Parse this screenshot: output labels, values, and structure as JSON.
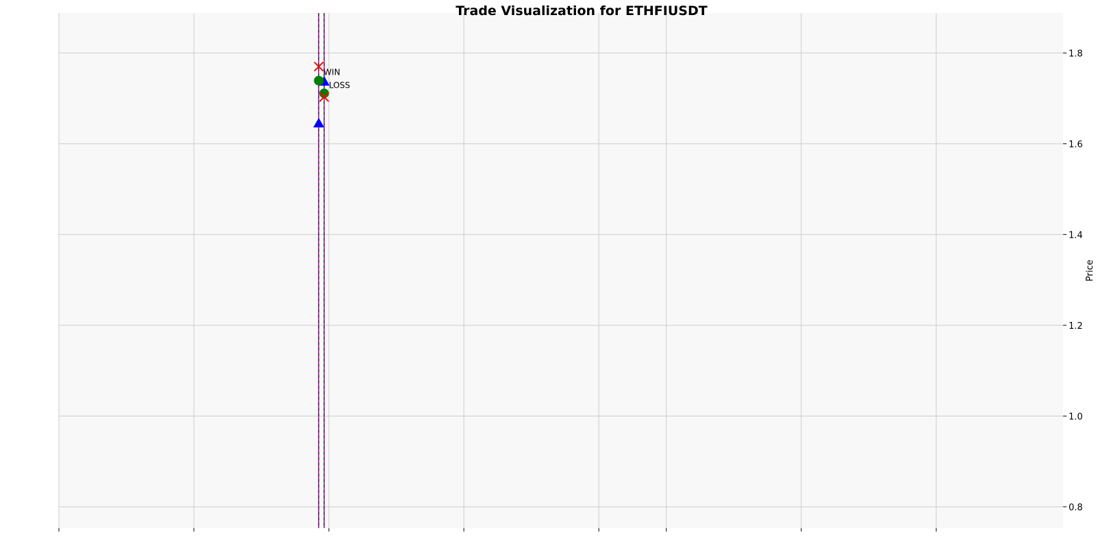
{
  "chart_data": {
    "type": "scatter",
    "title": "Trade Visualization for ETHFIUSDT",
    "xlabel": "",
    "ylabel": "Price",
    "ylim": [
      0.753,
      1.888
    ],
    "xlim": [
      0,
      7.44
    ],
    "y_ticks": [
      0.8,
      1.0,
      1.2,
      1.4,
      1.6,
      1.8
    ],
    "y_tick_labels": [
      "0.8",
      "1.0",
      "1.2",
      "1.4",
      "1.6",
      "1.8"
    ],
    "x_tick_positions": [
      0,
      1,
      2,
      3,
      4,
      4.5,
      5.5,
      6.5
    ],
    "x_tick_labels": [
      "",
      "",
      "",
      "",
      "",
      "",
      "",
      ""
    ],
    "grid": true,
    "y_axis_side": "right",
    "colors": {
      "plot_background": "#f8f8f8",
      "grid": "#cccccc",
      "entry_marker": "#0000ff",
      "take_profit_marker": "#008000",
      "stop_loss_marker": "#ff0000",
      "trade_line": "#800080"
    },
    "trade_lines": [
      1.925,
      1.965
    ],
    "series": [
      {
        "marker": "triangle",
        "color": "#0000ff",
        "points": [
          {
            "x": 1.925,
            "y": 1.645
          },
          {
            "x": 1.965,
            "y": 1.737
          }
        ]
      },
      {
        "marker": "circle",
        "color": "#008000",
        "points": [
          {
            "x": 1.925,
            "y": 1.739
          },
          {
            "x": 1.965,
            "y": 1.711
          }
        ]
      },
      {
        "marker": "x",
        "color": "#ff0000",
        "points": [
          {
            "x": 1.925,
            "y": 1.77
          },
          {
            "x": 1.965,
            "y": 1.703
          }
        ]
      }
    ],
    "annotations": [
      {
        "text": "WIN",
        "x": 1.925,
        "y": 1.739
      },
      {
        "text": "LOSS",
        "x": 1.965,
        "y": 1.711
      }
    ]
  }
}
